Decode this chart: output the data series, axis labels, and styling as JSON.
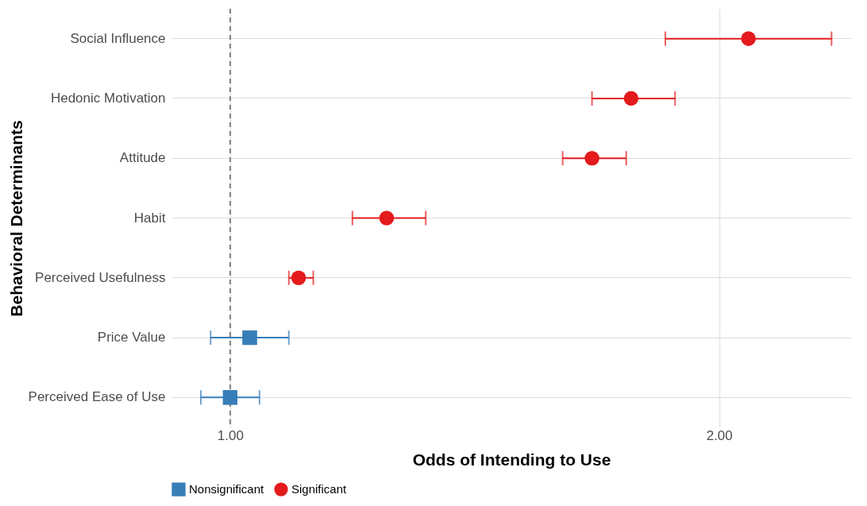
{
  "chart_data": {
    "type": "scatter",
    "orientation": "horizontal",
    "xlabel": "Odds of Intending to Use",
    "ylabel": "Behavioral Determinants",
    "categories": [
      "Social Influence",
      "Hedonic Motivation",
      "Attitude",
      "Habit",
      "Perceived Usefulness",
      "Price Value",
      "Perceived Ease of Use"
    ],
    "series": [
      {
        "name": "Nonsignificant",
        "color": "#377eb8",
        "marker": "square",
        "values": [
          null,
          null,
          null,
          null,
          null,
          1.04,
          1.0
        ],
        "errors": [
          null,
          null,
          null,
          null,
          null,
          [
            0.96,
            1.12
          ],
          [
            0.94,
            1.06
          ]
        ]
      },
      {
        "name": "Significant",
        "color": "#e41a1c",
        "marker": "circle",
        "values": [
          2.06,
          1.82,
          1.74,
          1.32,
          1.14,
          null,
          null
        ],
        "errors": [
          [
            1.89,
            2.23
          ],
          [
            1.74,
            1.91
          ],
          [
            1.68,
            1.81
          ],
          [
            1.25,
            1.4
          ],
          [
            1.12,
            1.17
          ],
          null,
          null
        ]
      }
    ],
    "xlim": [
      0.88,
      2.27
    ],
    "xticks": [
      {
        "value": 1,
        "label": "1.00"
      },
      {
        "value": 2,
        "label": "2.00"
      }
    ],
    "ref_lines": [
      {
        "axis": "x",
        "value": 1,
        "color": "#808080",
        "line_style": "dashed"
      }
    ],
    "grid": true,
    "legend": "bottom"
  }
}
